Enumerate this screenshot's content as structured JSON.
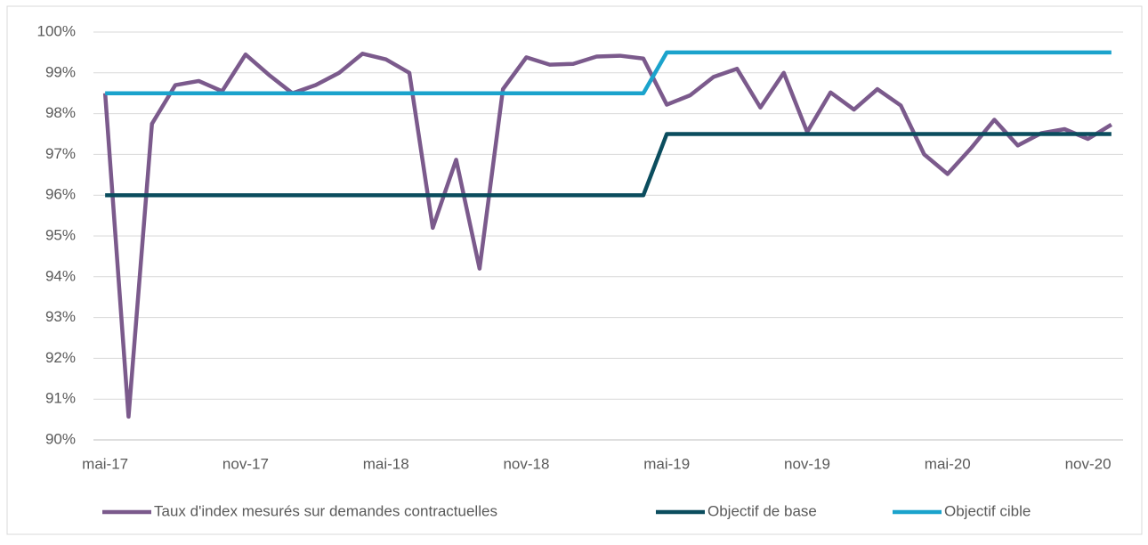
{
  "chart_data": {
    "type": "line",
    "categories": [
      "mai-17",
      null,
      null,
      null,
      null,
      null,
      "nov-17",
      null,
      null,
      null,
      null,
      null,
      "mai-18",
      null,
      null,
      null,
      null,
      null,
      "nov-18",
      null,
      null,
      null,
      null,
      null,
      "mai-19",
      null,
      null,
      null,
      null,
      null,
      "nov-19",
      null,
      null,
      null,
      null,
      null,
      "mai-20",
      null,
      null,
      null,
      null,
      null,
      "nov-20",
      null
    ],
    "series": [
      {
        "name": "Taux d'index mesurés sur demandes contractuelles",
        "color": "#7b5a8c",
        "values": [
          98.5,
          90.57,
          97.75,
          98.7,
          98.8,
          98.55,
          99.45,
          98.95,
          98.5,
          98.7,
          99.0,
          99.47,
          99.33,
          99.0,
          95.2,
          96.87,
          94.2,
          98.6,
          99.38,
          99.2,
          99.22,
          99.4,
          99.42,
          99.35,
          98.22,
          98.45,
          98.9,
          99.1,
          98.15,
          99.0,
          97.55,
          98.52,
          98.1,
          98.6,
          98.2,
          97.0,
          96.52,
          97.15,
          97.85,
          97.22,
          97.52,
          97.62,
          97.38,
          97.73
        ]
      },
      {
        "name": "Objectif de base",
        "color": "#0b4d5e",
        "values": [
          96,
          96,
          96,
          96,
          96,
          96,
          96,
          96,
          96,
          96,
          96,
          96,
          96,
          96,
          96,
          96,
          96,
          96,
          96,
          96,
          96,
          96,
          96,
          96,
          97.5,
          97.5,
          97.5,
          97.5,
          97.5,
          97.5,
          97.5,
          97.5,
          97.5,
          97.5,
          97.5,
          97.5,
          97.5,
          97.5,
          97.5,
          97.5,
          97.5,
          97.5,
          97.5,
          97.5
        ]
      },
      {
        "name": "Objectif cible",
        "color": "#1ba3cc",
        "values": [
          98.5,
          98.5,
          98.5,
          98.5,
          98.5,
          98.5,
          98.5,
          98.5,
          98.5,
          98.5,
          98.5,
          98.5,
          98.5,
          98.5,
          98.5,
          98.5,
          98.5,
          98.5,
          98.5,
          98.5,
          98.5,
          98.5,
          98.5,
          98.5,
          99.5,
          99.5,
          99.5,
          99.5,
          99.5,
          99.5,
          99.5,
          99.5,
          99.5,
          99.5,
          99.5,
          99.5,
          99.5,
          99.5,
          99.5,
          99.5,
          99.5,
          99.5,
          99.5,
          99.5
        ]
      }
    ],
    "ylim": [
      90,
      100
    ],
    "yticks": [
      {
        "value": 90,
        "label": "90%"
      },
      {
        "value": 91,
        "label": "91%"
      },
      {
        "value": 92,
        "label": "92%"
      },
      {
        "value": 93,
        "label": "93%"
      },
      {
        "value": 94,
        "label": "94%"
      },
      {
        "value": 95,
        "label": "95%"
      },
      {
        "value": 96,
        "label": "96%"
      },
      {
        "value": 97,
        "label": "97%"
      },
      {
        "value": 98,
        "label": "98%"
      },
      {
        "value": 99,
        "label": "99%"
      },
      {
        "value": 100,
        "label": "100%"
      }
    ],
    "grid": true,
    "legend": "bottom"
  }
}
